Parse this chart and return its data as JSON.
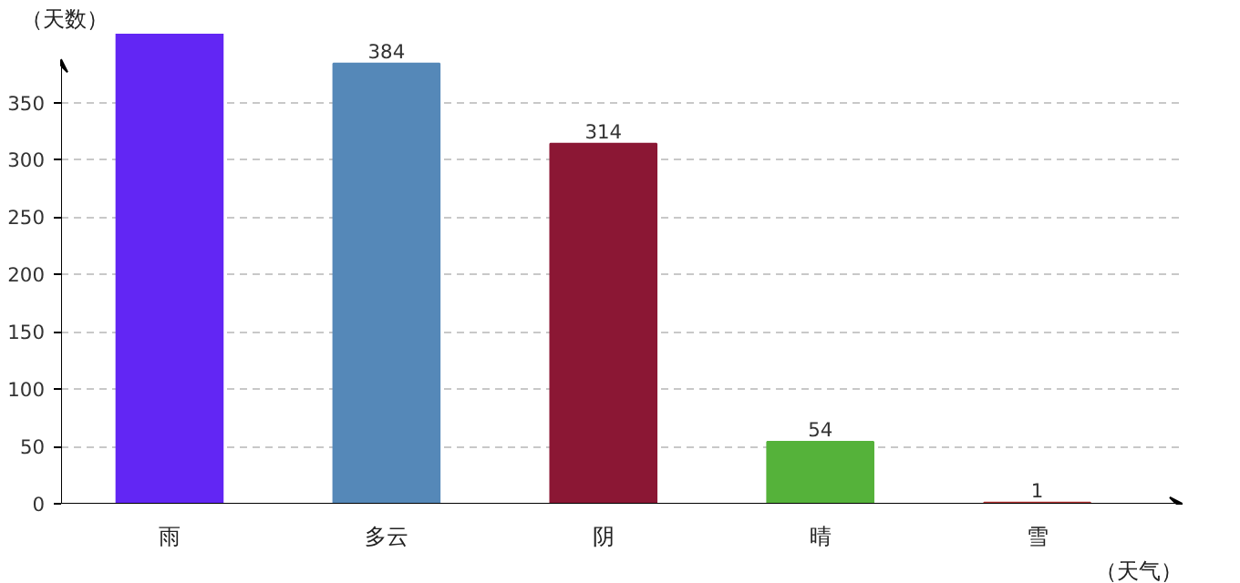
{
  "chart_data": {
    "type": "bar",
    "xlabel": "（天气）",
    "ylabel": "（天数）",
    "categories": [
      "雨",
      "多云",
      "阴",
      "晴",
      "雪"
    ],
    "values": [
      410,
      384,
      314,
      54,
      1
    ],
    "colors": [
      "#6226f4",
      "#5588b8",
      "#8b1734",
      "#55b23a",
      "#b03030"
    ],
    "value_labels": [
      null,
      "384",
      "314",
      "54",
      "1"
    ],
    "ylim": [
      0,
      410
    ],
    "yticks": [
      0,
      50,
      100,
      150,
      200,
      250,
      300,
      350
    ],
    "grid": "y"
  }
}
